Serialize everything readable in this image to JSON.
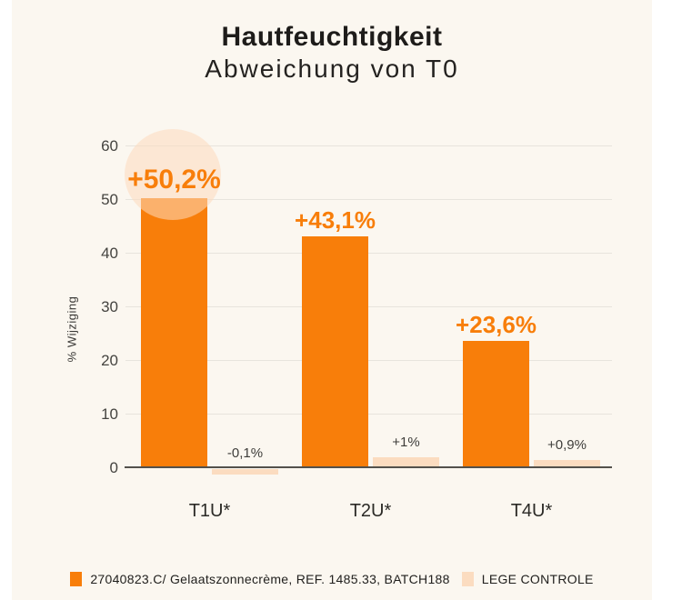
{
  "page": {
    "background_color": "#FBF7F0",
    "margin_color": "#FFFFFF"
  },
  "header": {
    "title": "Hautfeuchtigkeit",
    "subtitle": "Abweichung von T0"
  },
  "chart_data": {
    "type": "bar",
    "title": "Hautfeuchtigkeit",
    "subtitle": "Abweichung von T0",
    "xlabel": "",
    "ylabel": "% Wijziging",
    "ylim": [
      0,
      60
    ],
    "yticks": [
      0,
      10,
      20,
      30,
      40,
      50,
      60
    ],
    "grid": true,
    "legend_position": "bottom",
    "categories": [
      "T1U*",
      "T2U*",
      "T4U*"
    ],
    "series": [
      {
        "name": "27040823.C/ Gelaatszonnecrème, REF. 1485.33, BATCH188",
        "color": "#F87E0A",
        "values": [
          50.2,
          43.1,
          23.6
        ],
        "value_labels": [
          "+50,2%",
          "+43,1%",
          "+23,6%"
        ]
      },
      {
        "name": "LEGE CONTROLE",
        "color": "#FBDCC0",
        "values": [
          -0.1,
          1.0,
          0.9
        ],
        "value_labels": [
          "-0,1%",
          "+1%",
          "+0,9%"
        ],
        "drawn_values": [
          -1.0,
          1.85,
          1.2
        ]
      }
    ],
    "highlight": {
      "series": 0,
      "index": 0,
      "shape": "circle",
      "color": "rgba(253,219,189,0.55)"
    }
  }
}
